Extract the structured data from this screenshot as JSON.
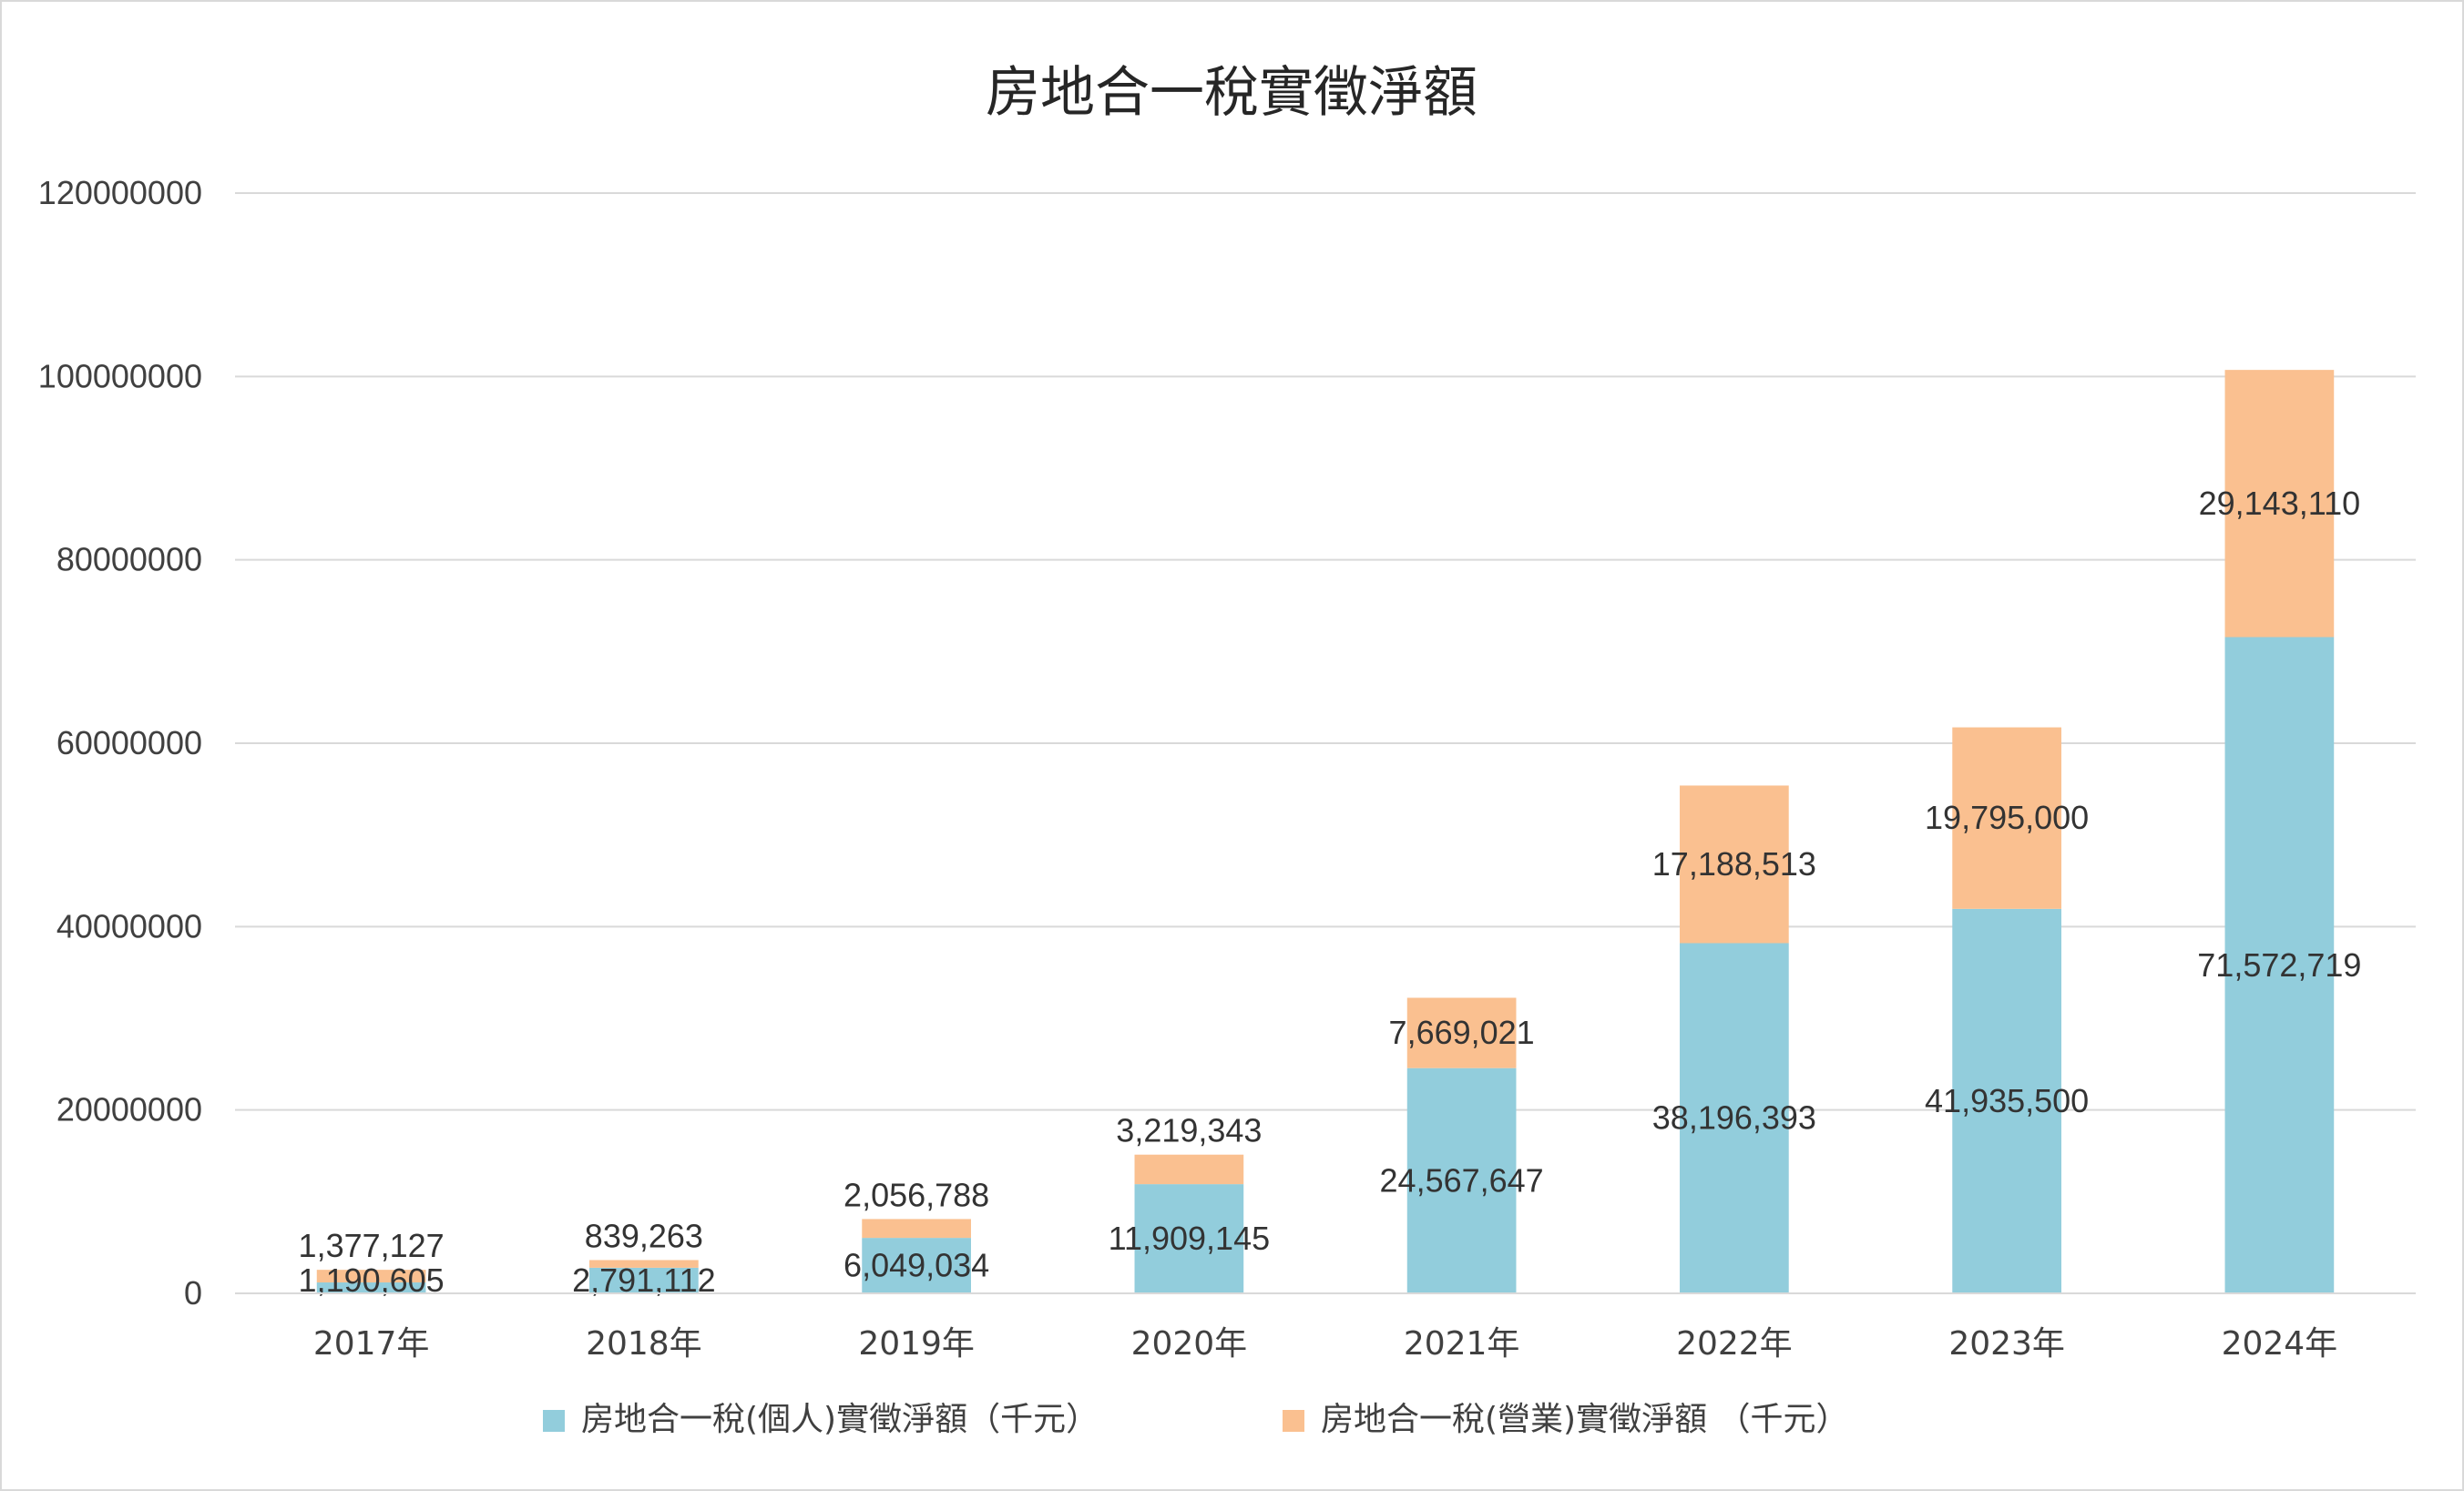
{
  "chart_data": {
    "type": "bar",
    "stacked": true,
    "title": "房地合一稅實徵淨額",
    "xlabel": "",
    "ylabel": "",
    "categories": [
      "2017年",
      "2018年",
      "2019年",
      "2020年",
      "2021年",
      "2022年",
      "2023年",
      "2024年"
    ],
    "series": [
      {
        "name": "房地合一稅(個人)實徵淨額（千元）",
        "color": "#92cddc",
        "values": [
          1190605,
          2791112,
          6049034,
          11909145,
          24567647,
          38196393,
          41935500,
          71572719
        ],
        "labels": [
          "1,190,605",
          "2,791,112",
          "6,049,034",
          "11,909,145",
          "24,567,647",
          "38,196,393",
          "41,935,500",
          "71,572,719"
        ]
      },
      {
        "name": "房地合一稅(營業)實徵淨額 （千元）",
        "color": "#fac090",
        "values": [
          1377127,
          839263,
          2056788,
          3219343,
          7669021,
          17188513,
          19795000,
          29143110
        ],
        "labels": [
          "1,377,127",
          "839,263",
          "2,056,788",
          "3,219,343",
          "7,669,021",
          "17,188,513",
          "19,795,000",
          "29,143,110"
        ]
      }
    ],
    "ylim": [
      0,
      120000000
    ],
    "yticks": [
      0,
      20000000,
      40000000,
      60000000,
      80000000,
      100000000,
      120000000
    ],
    "ytick_labels": [
      "0",
      "20000000",
      "40000000",
      "60000000",
      "80000000",
      "100000000",
      "120000000"
    ],
    "grid": true,
    "legend": "bottom"
  }
}
